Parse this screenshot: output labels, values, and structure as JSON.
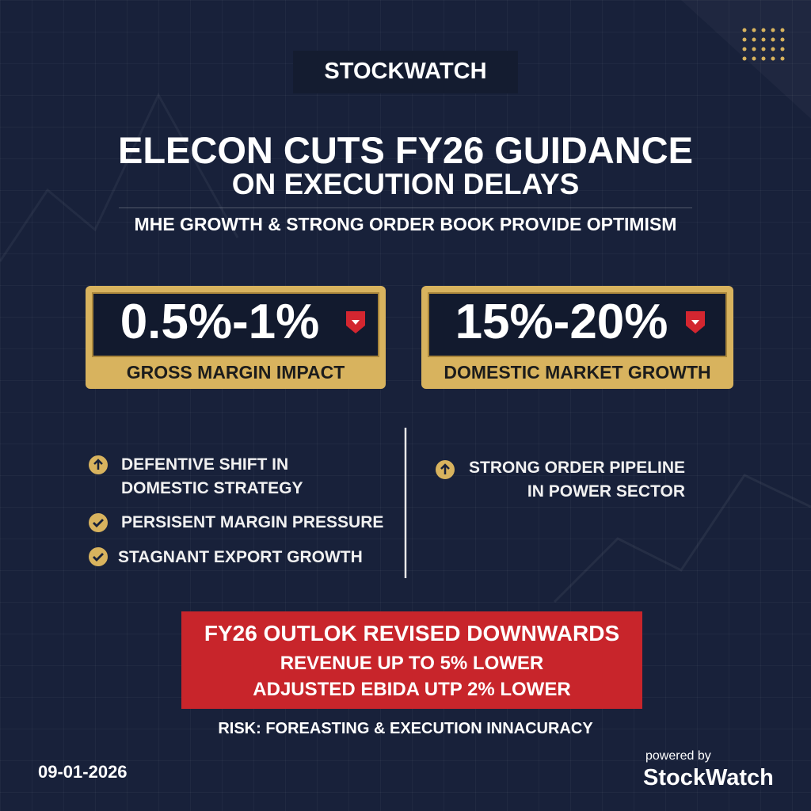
{
  "header": {
    "brand": "STOCKWATCH",
    "title_lines": [
      "ELECON CUTS FY26 GUIDANCE",
      "ON EXECUTION DELAYS"
    ],
    "subtitle": "MHE GROWTH & STRONG ORDER BOOK PROVIDE OPTIMISM"
  },
  "stats": [
    {
      "value": "0.5%-1%",
      "label": "GROSS MARGIN IMPACT"
    },
    {
      "value": "15%-20%",
      "label": "DOMESTIC MARKET GROWTH"
    }
  ],
  "left_points": [
    {
      "lines": [
        "DEFENTIVE SHIFT IN",
        "DOMESTIC STRATEGY"
      ]
    },
    {
      "lines": [
        "PERSISENT MARGIN PRESSURE"
      ]
    },
    {
      "lines": [
        "STAGNANT EXPORT GROWTH"
      ]
    }
  ],
  "right_points": [
    {
      "lines": [
        "STRONG ORDER PIPELINE",
        "IN POWER SECTOR"
      ]
    }
  ],
  "outlook": {
    "heading": "FY26 OUTLOK REVISED DOWNWARDS",
    "lines": [
      "REVENUE UP TO 5% LOWER",
      "ADJUSTED EBIDA UTP 2% LOWER"
    ]
  },
  "risk": "RISK: FOREASTING & EXECUTION INNACURACY",
  "footer": {
    "date": "09-01-2026",
    "powered_by": "powered by",
    "brand": "StockWatch"
  }
}
